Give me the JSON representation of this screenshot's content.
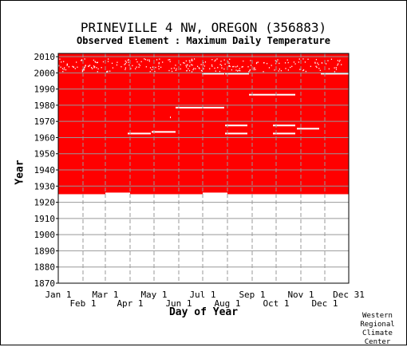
{
  "chart_data": {
    "type": "heatmap",
    "title": "PRINEVILLE 4 NW, OREGON   (356883)",
    "subtitle": "Observed Element : Maximum Daily Temperature",
    "xlabel": "Day of Year",
    "ylabel": "Year",
    "xlim": [
      1,
      365
    ],
    "ylim": [
      1870,
      2012
    ],
    "x_ticks_top": [
      {
        "label": "Jan 1",
        "day": 1
      },
      {
        "label": "Mar 1",
        "day": 60
      },
      {
        "label": "May 1",
        "day": 121
      },
      {
        "label": "Jul 1",
        "day": 182
      },
      {
        "label": "Sep 1",
        "day": 244
      },
      {
        "label": "Nov 1",
        "day": 305
      },
      {
        "label": "Dec 31",
        "day": 365
      }
    ],
    "x_ticks_bottom": [
      {
        "label": "Feb 1",
        "day": 32
      },
      {
        "label": "Apr 1",
        "day": 91
      },
      {
        "label": "Jun 1",
        "day": 152
      },
      {
        "label": "Aug 1",
        "day": 213
      },
      {
        "label": "Oct 1",
        "day": 274
      },
      {
        "label": "Dec 1",
        "day": 335
      }
    ],
    "y_ticks": [
      1870,
      1880,
      1890,
      1900,
      1910,
      1920,
      1930,
      1940,
      1950,
      1960,
      1970,
      1980,
      1990,
      2000,
      2010
    ],
    "data_color": "#ff0000",
    "grid": true,
    "coverage": {
      "start_year": 1925,
      "end_year": 2011,
      "first_year_start_day": {
        "start_year": 1925,
        "segments": [
          {
            "from_day": 1,
            "to_day": 60,
            "start_year": 1925
          },
          {
            "from_day": 60,
            "to_day": 91,
            "start_year": 1926
          },
          {
            "from_day": 91,
            "to_day": 182,
            "start_year": 1925
          },
          {
            "from_day": 182,
            "to_day": 213,
            "start_year": 1926
          },
          {
            "from_day": 213,
            "to_day": 365,
            "start_year": 1925
          }
        ]
      }
    },
    "missing_segments": [
      {
        "year": 1962,
        "from_day": 88,
        "to_day": 117
      },
      {
        "year": 1963,
        "from_day": 118,
        "to_day": 148
      },
      {
        "year": 1978,
        "from_day": 148,
        "to_day": 209
      },
      {
        "year": 1962,
        "from_day": 210,
        "to_day": 238
      },
      {
        "year": 1967,
        "from_day": 210,
        "to_day": 238
      },
      {
        "year": 1986,
        "from_day": 240,
        "to_day": 298
      },
      {
        "year": 1962,
        "from_day": 270,
        "to_day": 298
      },
      {
        "year": 1967,
        "from_day": 270,
        "to_day": 298
      },
      {
        "year": 1965,
        "from_day": 300,
        "to_day": 328
      },
      {
        "year": 1999,
        "from_day": 181,
        "to_day": 209
      },
      {
        "year": 1999,
        "from_day": 210,
        "to_day": 240
      },
      {
        "year": 1999,
        "from_day": 330,
        "to_day": 365
      },
      {
        "year": 1972,
        "from_day": 141,
        "to_day": 142
      }
    ],
    "sparse_years": [
      2001,
      2002,
      2003,
      2004,
      2005,
      2006,
      2007,
      2008
    ]
  },
  "credit": [
    "Western",
    "Regional",
    "Climate",
    "Center"
  ]
}
